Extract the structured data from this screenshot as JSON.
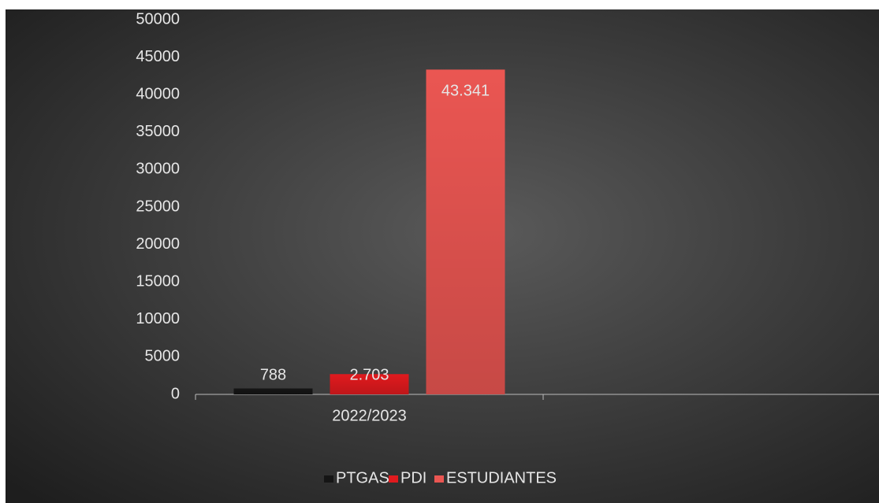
{
  "chart_data": {
    "type": "bar",
    "categories": [
      "2022/2023",
      null
    ],
    "series": [
      {
        "name": "PTGAS",
        "color": "#151515",
        "values": [
          788,
          null
        ],
        "value_labels": [
          "788",
          null
        ]
      },
      {
        "name": "PDI",
        "color": "#e01a1e",
        "values": [
          2703,
          null
        ],
        "value_labels": [
          "2.703",
          null
        ]
      },
      {
        "name": "ESTUDIANTES",
        "color": "#ea5652",
        "values": [
          43341,
          null
        ],
        "value_labels": [
          "43.341",
          null
        ]
      }
    ],
    "ylim": [
      0,
      50000
    ],
    "yticks": [
      0,
      5000,
      10000,
      15000,
      20000,
      25000,
      30000,
      35000,
      40000,
      45000,
      50000
    ],
    "grid": false,
    "legend": "bottom"
  }
}
